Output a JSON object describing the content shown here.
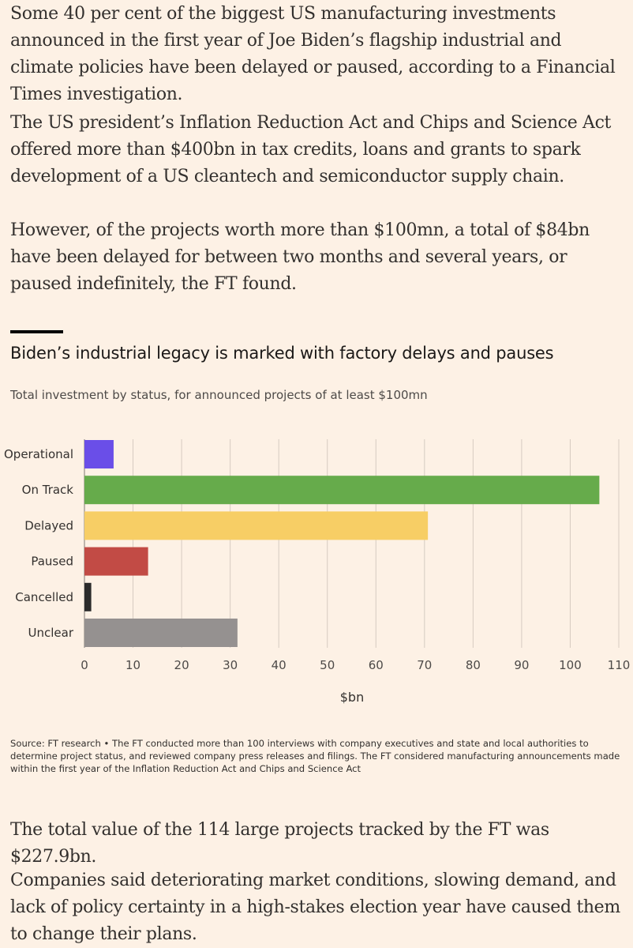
{
  "article": {
    "p1": "Some 40 per cent of the biggest US manufacturing investments announced in the first year of Joe Biden’s flagship industrial and climate policies have been delayed or paused, according to a Financial Times investigation.",
    "p2": "The US president’s Inflation Reduction Act and Chips and Science Act offered more than $400bn in tax credits, loans and grants to spark development of a US cleantech and semiconductor supply chain.",
    "p3": "However, of the projects worth more than $100mn, a total of $84bn have been delayed for between two months and several years, or paused indefinitely, the FT found.",
    "p4": "The total value of the 114 large projects tracked by the FT was $227.9bn.",
    "p5": "Companies said deteriorating market conditions, slowing demand, and lack of policy certainty in a high-stakes election year have caused them to change their plans."
  },
  "chart_data": {
    "type": "bar",
    "orientation": "horizontal",
    "title": "Biden’s industrial legacy is marked with factory delays and pauses",
    "subtitle": "Total investment by status, for announced projects of at least $100mn",
    "categories": [
      "Operational",
      "On Track",
      "Delayed",
      "Paused",
      "Cancelled",
      "Unclear"
    ],
    "values": [
      6,
      106,
      70.7,
      13.1,
      1.4,
      31.5
    ],
    "colors": [
      "#6a4ee8",
      "#66ab4b",
      "#f7ce65",
      "#c24b45",
      "#2b2b2b",
      "#959190"
    ],
    "xlabel": "$bn",
    "ylabel": "",
    "xlim": [
      0,
      110
    ],
    "xticks": [
      0,
      10,
      20,
      30,
      40,
      50,
      60,
      70,
      80,
      90,
      100,
      110
    ],
    "grid": true
  },
  "source": "Source: FT research • The FT conducted more than 100 interviews with company executives and state and local authorities to determine project status, and reviewed company press releases and filings. The FT considered manufacturing announcements made within the first year of the Inflation Reduction Act and Chips and Science Act"
}
